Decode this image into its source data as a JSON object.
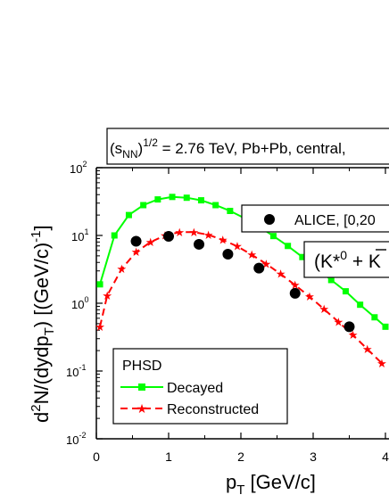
{
  "header": {
    "energy_base": "(s",
    "energy_sub": "NN",
    "energy_close": ")",
    "energy_sup": "1/2",
    "energy_rest": " = 2.76 TeV, Pb+Pb, central,"
  },
  "axes": {
    "ylabel_prefix": "d",
    "ylabel_sup1": "2",
    "ylabel_mid": "N/(dydp",
    "ylabel_sub": "T",
    "ylabel_tail": ") [(GeV/c)",
    "ylabel_sup2": "-1",
    "ylabel_end": "]",
    "xlabel_p": "p",
    "xlabel_sub": "T",
    "xlabel_tail": " [GeV/c]",
    "y_ticks": [
      {
        "base": "10",
        "exp": "2"
      },
      {
        "base": "10",
        "exp": "1"
      },
      {
        "base": "10",
        "exp": "0"
      },
      {
        "base": "10",
        "exp": "-1"
      },
      {
        "base": "10",
        "exp": "-2"
      }
    ],
    "x_ticks": [
      "0",
      "1",
      "2",
      "3",
      "4"
    ]
  },
  "legend": {
    "alice_label": "ALICE, [0,20",
    "particle_label": "(K*",
    "particle_sup": "0",
    "particle_tail": " + K",
    "phsd_title": "PHSD",
    "decayed_label": "Decayed",
    "reconstructed_label": "Reconstructed"
  },
  "colors": {
    "decayed": "#00ff00",
    "reconstructed": "#ff0000",
    "alice": "#000000"
  },
  "chart_data": {
    "type": "line",
    "xlabel": "pT [GeV/c]",
    "ylabel": "d2N/(dydpT) [(GeV/c)-1]",
    "xlim": [
      0,
      4
    ],
    "ylim": [
      0.01,
      100
    ],
    "y_scale": "log",
    "series": [
      {
        "name": "Decayed",
        "style": "solid line, square markers",
        "color": "#00ff00",
        "x": [
          0.05,
          0.25,
          0.45,
          0.65,
          0.85,
          1.05,
          1.25,
          1.45,
          1.65,
          1.85,
          2.05,
          2.25,
          2.45,
          2.65,
          2.85,
          3.05,
          3.25,
          3.45,
          3.65,
          3.85,
          4.0
        ],
        "y": [
          1.9,
          10.0,
          20.0,
          28.0,
          34.0,
          37.0,
          36.0,
          33.0,
          28.0,
          23.0,
          18.0,
          13.5,
          9.8,
          7.0,
          4.8,
          3.3,
          2.2,
          1.5,
          0.95,
          0.62,
          0.45
        ]
      },
      {
        "name": "Reconstructed",
        "style": "dashed line, star markers",
        "color": "#ff0000",
        "x": [
          0.05,
          0.15,
          0.35,
          0.55,
          0.75,
          0.95,
          1.15,
          1.35,
          1.55,
          1.75,
          1.95,
          2.15,
          2.35,
          2.55,
          2.75,
          2.95,
          3.15,
          3.35,
          3.55,
          3.75,
          3.95
        ],
        "y": [
          0.45,
          1.3,
          3.2,
          5.7,
          8.0,
          10.0,
          11.2,
          11.2,
          10.2,
          8.6,
          6.9,
          5.2,
          3.8,
          2.7,
          1.85,
          1.25,
          0.82,
          0.53,
          0.34,
          0.21,
          0.13
        ]
      },
      {
        "name": "ALICE",
        "style": "black filled circles",
        "color": "#000000",
        "x": [
          0.55,
          1.0,
          1.42,
          1.82,
          2.25,
          2.75,
          3.5
        ],
        "y": [
          8.2,
          9.7,
          7.4,
          5.3,
          3.3,
          1.4,
          0.45
        ]
      }
    ]
  }
}
